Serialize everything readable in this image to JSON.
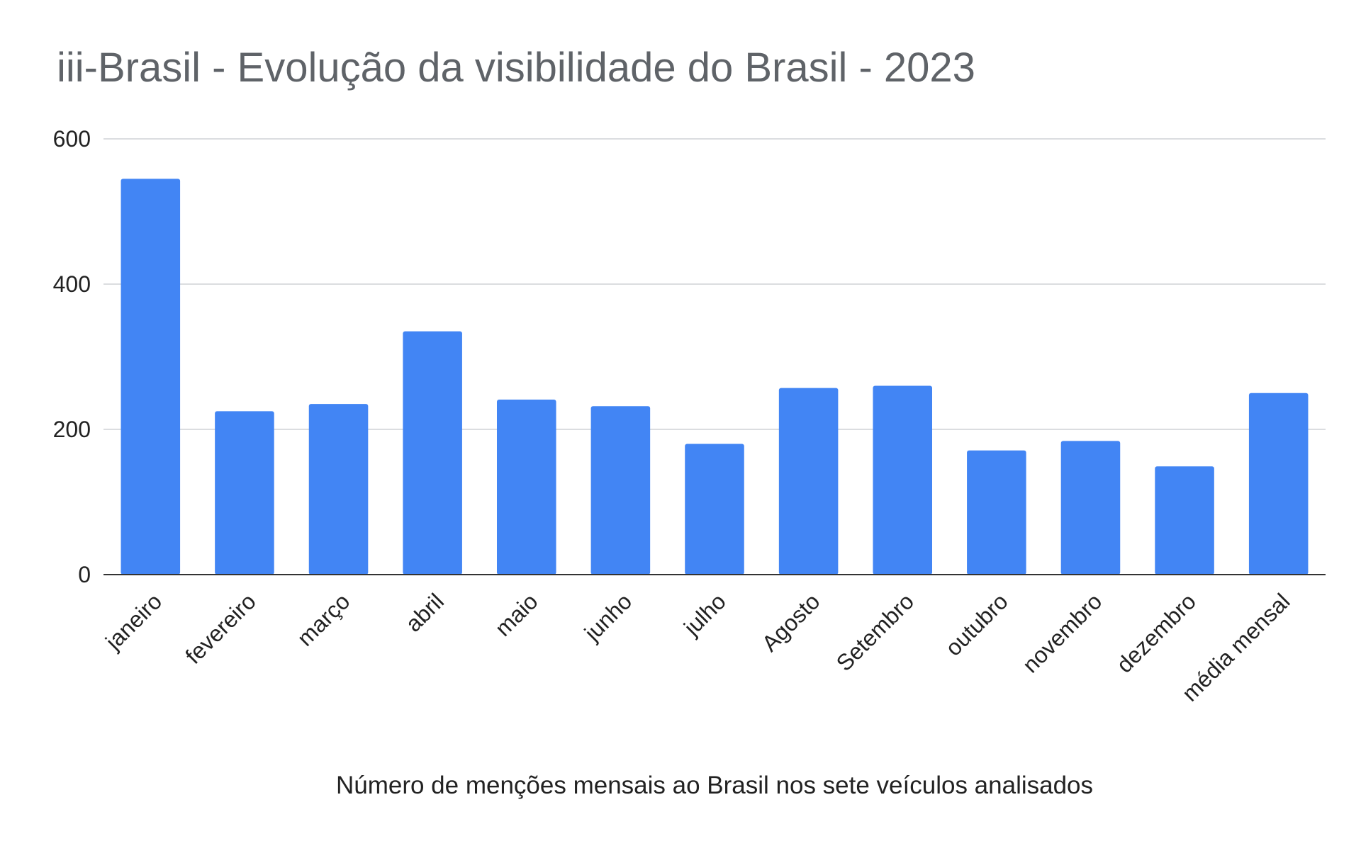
{
  "chart_data": {
    "type": "bar",
    "title": "iii-Brasil - Evolução da visibilidade do Brasil - 2023",
    "xlabel": "Número de menções mensais ao Brasil nos sete veículos analisados",
    "ylabel": "",
    "ylim": [
      0,
      600
    ],
    "yticks": [
      0,
      200,
      400,
      600
    ],
    "grid": true,
    "legend": "none",
    "bar_color": "#4285f4",
    "categories": [
      "janeiro",
      "fevereiro",
      "março",
      "abril",
      "maio",
      "junho",
      "julho",
      "Agosto",
      "Setembro",
      "outubro",
      "novembro",
      "dezembro",
      "média mensal"
    ],
    "values": [
      545,
      225,
      235,
      335,
      241,
      232,
      180,
      257,
      260,
      171,
      184,
      149,
      250
    ]
  }
}
